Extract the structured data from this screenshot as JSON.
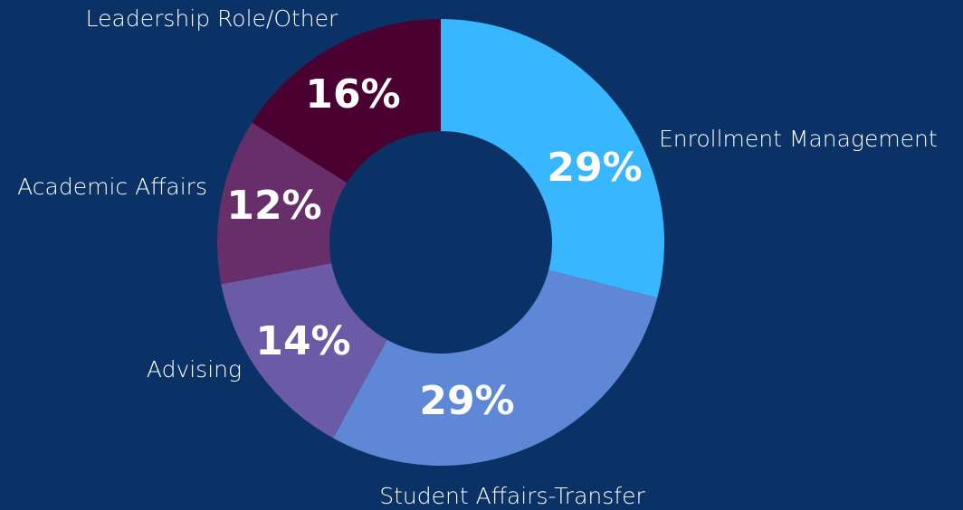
{
  "chart_data": {
    "type": "donut",
    "categories": [
      "Enrollment Management",
      "Student Affairs-Transfer",
      "Advising",
      "Academic Affairs",
      "Leadership Role/Other"
    ],
    "values": [
      29,
      29,
      14,
      12,
      16
    ],
    "value_labels": [
      "29%",
      "29%",
      "14%",
      "12%",
      "16%"
    ],
    "colors": [
      "#38b6ff",
      "#5e88d6",
      "#6b5aa6",
      "#682e6a",
      "#4a0030"
    ]
  }
}
